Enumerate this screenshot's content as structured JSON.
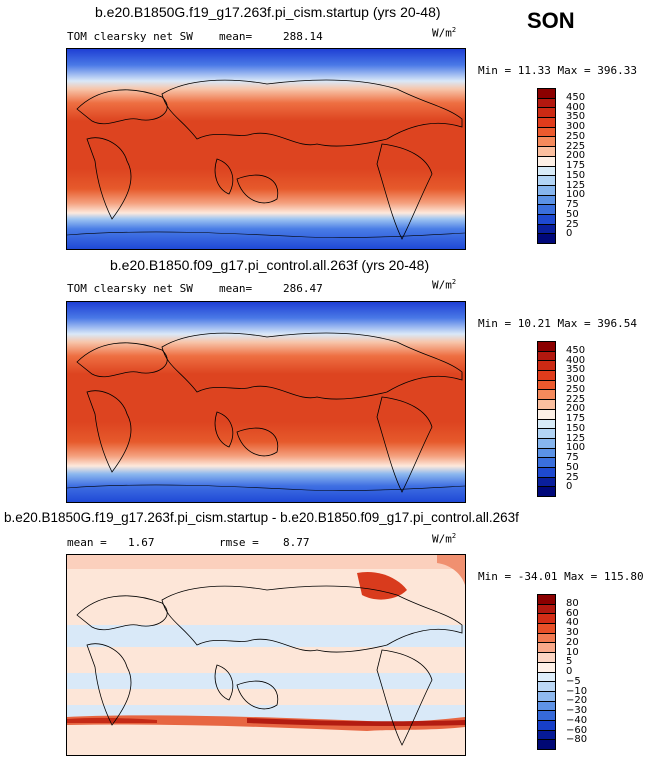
{
  "season": "SON",
  "units_base": "W/m",
  "units_exp": "2",
  "panels": [
    {
      "title": "b.e20.B1850G.f19_g17.263f.pi_cism.startup (yrs 20-48)",
      "variable": "TOM clearsky net SW",
      "mean_label": "mean=",
      "mean_value": "288.14",
      "minmax": "Min =  11.33 Max = 396.33",
      "colorbar": {
        "labels": [
          "450",
          "400",
          "350",
          "300",
          "250",
          "225",
          "200",
          "175",
          "150",
          "125",
          "100",
          "75",
          "50",
          "25",
          "0"
        ],
        "colors": [
          "#8b0000",
          "#b2180f",
          "#cc2a14",
          "#e03c1c",
          "#ec5a2e",
          "#f58a5c",
          "#fbbf9f",
          "#fdf0e6",
          "#d8ebf8",
          "#b2d4f5",
          "#86b5ee",
          "#5b92e6",
          "#3a6fdd",
          "#1e49d0",
          "#0a1f9c",
          "#00087a"
        ]
      }
    },
    {
      "title": "b.e20.B1850.f09_g17.pi_control.all.263f (yrs 20-48)",
      "variable": "TOM clearsky net SW",
      "mean_label": "mean=",
      "mean_value": "286.47",
      "minmax": "Min =  10.21 Max = 396.54",
      "colorbar": {
        "labels": [
          "450",
          "400",
          "350",
          "300",
          "250",
          "225",
          "200",
          "175",
          "150",
          "125",
          "100",
          "75",
          "50",
          "25",
          "0"
        ],
        "colors": [
          "#8b0000",
          "#b2180f",
          "#cc2a14",
          "#e03c1c",
          "#ec5a2e",
          "#f58a5c",
          "#fbbf9f",
          "#fdf0e6",
          "#d8ebf8",
          "#b2d4f5",
          "#86b5ee",
          "#5b92e6",
          "#3a6fdd",
          "#1e49d0",
          "#0a1f9c",
          "#00087a"
        ]
      }
    },
    {
      "title": "b.e20.B1850G.f19_g17.263f.pi_cism.startup - b.e20.B1850.f09_g17.pi_control.all.263f",
      "mean_label": "mean =",
      "mean_value": "1.67",
      "rmse_label": "rmse =",
      "rmse_value": "8.77",
      "minmax": "Min = -34.01 Max = 115.80",
      "colorbar": {
        "labels": [
          "80",
          "60",
          "40",
          "30",
          "20",
          "10",
          "5",
          "0",
          "−5",
          "−10",
          "−20",
          "−30",
          "−40",
          "−60",
          "−80"
        ],
        "colors": [
          "#8b0000",
          "#b2180f",
          "#d42d16",
          "#e85028",
          "#f27b52",
          "#f9a98a",
          "#fcd5c3",
          "#fff1e8",
          "#deeefb",
          "#bcd8f6",
          "#8fb9ef",
          "#5f93e6",
          "#3669d9",
          "#173fc8",
          "#061a97",
          "#000875"
        ]
      }
    }
  ]
}
